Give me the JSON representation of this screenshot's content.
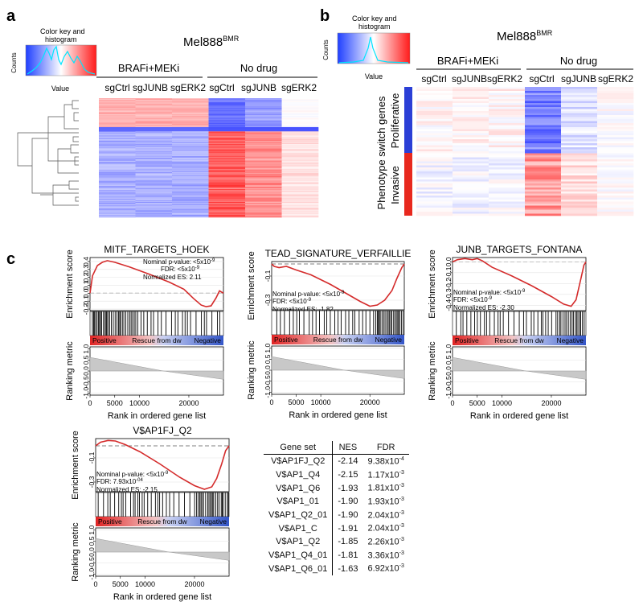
{
  "panel_a": {
    "label": "a",
    "title": "Mel888",
    "title_sup": "BMR",
    "color_key": {
      "title_line1": "Color key and",
      "title_line2": "histogram",
      "ylabel": "Counts",
      "xlabel": "Value"
    },
    "groups": [
      "BRAFi+MEKi",
      "No drug"
    ],
    "columns": [
      "sgCtrl",
      "sgJUNB",
      "sgERK2",
      "sgCtrl",
      "sgJUNB",
      "sgERK2"
    ]
  },
  "panel_b": {
    "label": "b",
    "title": "Mel888",
    "title_sup": "BMR",
    "color_key": {
      "title_line1": "Color key and",
      "title_line2": "histogram",
      "ylabel": "Counts",
      "xlabel": "Value"
    },
    "groups": [
      "BRAFi+MEKi",
      "No drug"
    ],
    "columns": [
      "sgCtrl",
      "sgJUNB",
      "sgERK2",
      "sgCtrl",
      "sgJUNB",
      "sgERK2"
    ],
    "row_title": "Phenotype switch genes",
    "row_groups": [
      "Proliferative",
      "Invasive"
    ],
    "row_group_colors": [
      "#2b3fd6",
      "#e8281e"
    ]
  },
  "panel_c": {
    "label": "c",
    "x_label": "Rank in ordered gene list",
    "y_label_top": "Enrichment score",
    "y_label_bottom": "Ranking metric",
    "bar_labels": [
      "Positive",
      "Rescue from dw",
      "Negative"
    ],
    "stat_labels": [
      "Nominal p-value:",
      "FDR:",
      "Normalized ES:"
    ]
  },
  "chart_data": [
    {
      "type": "line",
      "title": "MITF_TARGETS_HOEK",
      "x_ticks": [
        0,
        5000,
        10000,
        20000
      ],
      "y_ticks": [
        0.4,
        0.3,
        0.2,
        0.1,
        0.0,
        -0.1,
        -0.2
      ],
      "ylim": [
        -0.22,
        0.45
      ],
      "xlim": [
        0,
        27000
      ],
      "rank_metric_ticks": [
        1.0,
        0.5,
        0.0,
        -0.5,
        -1.0
      ],
      "curve_x": [
        0,
        500,
        1500,
        2500,
        3500,
        5000,
        8000,
        12000,
        16000,
        19000,
        21000,
        22500,
        23500,
        24500,
        25500,
        26200,
        27000
      ],
      "curve_y": [
        0.0,
        0.22,
        0.35,
        0.39,
        0.41,
        0.39,
        0.33,
        0.24,
        0.14,
        0.05,
        -0.07,
        -0.15,
        -0.17,
        -0.16,
        -0.06,
        0.03,
        0.0
      ],
      "nominal_p": "<5x10",
      "nominal_p_exp": "-9",
      "fdr": "<5x10",
      "fdr_exp": "-9",
      "nes": "2.11"
    },
    {
      "type": "line",
      "title": "TEAD_SIGNATURE_VERFAILLIE",
      "x_ticks": [
        0,
        5000,
        10000,
        20000
      ],
      "y_ticks": [
        -0.1,
        -0.3
      ],
      "ylim": [
        -0.38,
        0.02
      ],
      "xlim": [
        0,
        27000
      ],
      "rank_metric_ticks": [
        1.0,
        0.5,
        0.0,
        -0.5,
        -1.0
      ],
      "curve_x": [
        0,
        500,
        1500,
        3000,
        5000,
        8000,
        12000,
        15000,
        18000,
        20000,
        21500,
        23000,
        24500,
        25500,
        26500,
        27000
      ],
      "curve_y": [
        0.0,
        -0.02,
        -0.03,
        -0.02,
        -0.05,
        -0.09,
        -0.17,
        -0.24,
        -0.31,
        -0.35,
        -0.34,
        -0.3,
        -0.22,
        -0.12,
        -0.03,
        0.0
      ],
      "nominal_p": "<5x10",
      "nominal_p_exp": "-9",
      "fdr": "<5x10",
      "fdr_exp": "-9",
      "nes": "-1.82"
    },
    {
      "type": "line",
      "title": "JUNB_TARGETS_FONTANA",
      "x_ticks": [
        0,
        5000,
        10000,
        20000
      ],
      "y_ticks": [
        0.0,
        -0.1,
        -0.2,
        -0.3,
        -0.4
      ],
      "ylim": [
        -0.45,
        0.04
      ],
      "xlim": [
        0,
        27000
      ],
      "rank_metric_ticks": [
        1.0,
        0.5,
        0.0,
        -0.5,
        -1.0
      ],
      "curve_x": [
        0,
        1000,
        2500,
        4000,
        5000,
        6000,
        8000,
        12000,
        16000,
        20000,
        22500,
        24000,
        25000,
        26000,
        26600,
        27000
      ],
      "curve_y": [
        0.0,
        0.02,
        0.03,
        0.02,
        0.03,
        0.01,
        -0.05,
        -0.13,
        -0.22,
        -0.32,
        -0.39,
        -0.41,
        -0.35,
        -0.15,
        -0.03,
        0.0
      ],
      "nominal_p": "<5x10",
      "nominal_p_exp": "-9",
      "fdr": "<5x10",
      "fdr_exp": "-9",
      "nes": "-2.30"
    },
    {
      "type": "line",
      "title": "V$AP1FJ_Q2",
      "x_ticks": [
        0,
        5000,
        10000,
        20000
      ],
      "y_ticks": [
        -0.1,
        -0.3
      ],
      "ylim": [
        -0.38,
        0.06
      ],
      "xlim": [
        0,
        27000
      ],
      "rank_metric_ticks": [
        1.0,
        0.5,
        0.0,
        -0.5,
        -1.0
      ],
      "curve_x": [
        0,
        1000,
        2500,
        4000,
        6000,
        9000,
        13000,
        17000,
        20000,
        22000,
        23500,
        24500,
        25500,
        26300,
        27000
      ],
      "curve_y": [
        0.0,
        0.03,
        0.045,
        0.04,
        0.01,
        -0.05,
        -0.15,
        -0.26,
        -0.33,
        -0.36,
        -0.34,
        -0.27,
        -0.15,
        -0.04,
        0.0
      ],
      "nominal_p": "<5x10",
      "nominal_p_exp": "-9",
      "fdr": "7.93x10",
      "fdr_exp": "-04",
      "nes": "-2.15"
    },
    {
      "type": "table",
      "headers": [
        "Gene set",
        "NES",
        "FDR"
      ],
      "rows": [
        {
          "gene_set": "V$AP1FJ_Q2",
          "nes": "-2.14",
          "fdr": "9.38x10",
          "exp": "-4"
        },
        {
          "gene_set": "V$AP1_Q4",
          "nes": "-2.15",
          "fdr": "1.17x10",
          "exp": "-3"
        },
        {
          "gene_set": "V$AP1_Q6",
          "nes": "-1.93",
          "fdr": "1.81x10",
          "exp": "-3"
        },
        {
          "gene_set": "V$AP1_01",
          "nes": "-1.90",
          "fdr": "1.93x10",
          "exp": "-3"
        },
        {
          "gene_set": "V$AP1_Q2_01",
          "nes": "-1.90",
          "fdr": "2.04x10",
          "exp": "-3"
        },
        {
          "gene_set": "V$AP1_C",
          "nes": "-1.91",
          "fdr": "2.04x10",
          "exp": "-3"
        },
        {
          "gene_set": "V$AP1_Q2",
          "nes": "-1.85",
          "fdr": "2.26x10",
          "exp": "-3"
        },
        {
          "gene_set": "V$AP1_Q4_01",
          "nes": "-1.81",
          "fdr": "3.36x10",
          "exp": "-3"
        },
        {
          "gene_set": "V$AP1_Q6_01",
          "nes": "-1.63",
          "fdr": "6.92x10",
          "exp": "-3"
        }
      ]
    }
  ]
}
